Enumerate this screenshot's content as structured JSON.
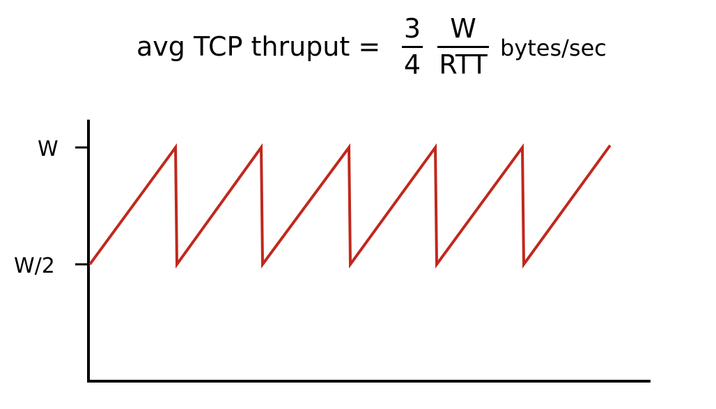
{
  "formula": {
    "lhs": "avg TCP thruput =",
    "fraction1": {
      "numerator": "3",
      "denominator": "4"
    },
    "fraction2": {
      "numerator": "W",
      "denominator": "RTT"
    },
    "unit": "bytes/sec"
  },
  "diagram": {
    "y_tick_labels": [
      "W",
      "W/2"
    ],
    "y_tick_values": [
      1.0,
      0.5
    ],
    "line_color": "#c0281c",
    "axis_color": "#000000",
    "sawtooth": {
      "min_level": 0.5,
      "max_level": 1.0,
      "cycles": 5,
      "ends_at_peak": true
    }
  }
}
